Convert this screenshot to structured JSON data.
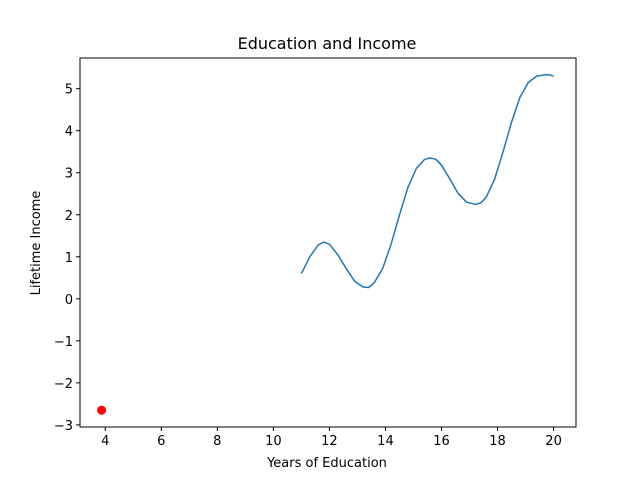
{
  "chart_data": {
    "type": "line",
    "title": "Education and Income",
    "xlabel": "Years of Education",
    "ylabel": "Lifetime Income",
    "xlim": [
      3.1,
      20.8
    ],
    "ylim": [
      -3.05,
      5.73
    ],
    "xticks": [
      4,
      6,
      8,
      10,
      12,
      14,
      16,
      18,
      20
    ],
    "yticks": [
      -3,
      -2,
      -1,
      0,
      1,
      2,
      3,
      4,
      5
    ],
    "xtick_labels": [
      "4",
      "6",
      "8",
      "10",
      "12",
      "14",
      "16",
      "18",
      "20"
    ],
    "ytick_labels": [
      "−3",
      "−2",
      "−1",
      "0",
      "1",
      "2",
      "3",
      "4",
      "5"
    ],
    "grid": false,
    "series": [
      {
        "type": "line",
        "color": "#1f77b4",
        "x": [
          11.0,
          11.3,
          11.6,
          11.8,
          12.0,
          12.3,
          12.6,
          12.9,
          13.2,
          13.4,
          13.6,
          13.9,
          14.2,
          14.5,
          14.8,
          15.1,
          15.4,
          15.6,
          15.8,
          16.0,
          16.3,
          16.6,
          16.9,
          17.2,
          17.4,
          17.6,
          17.9,
          18.2,
          18.5,
          18.8,
          19.1,
          19.4,
          19.7,
          19.85,
          20.0
        ],
        "y": [
          0.6,
          1.0,
          1.28,
          1.35,
          1.3,
          1.05,
          0.72,
          0.42,
          0.28,
          0.27,
          0.38,
          0.72,
          1.3,
          2.0,
          2.65,
          3.1,
          3.32,
          3.35,
          3.32,
          3.18,
          2.85,
          2.5,
          2.3,
          2.25,
          2.28,
          2.42,
          2.85,
          3.5,
          4.2,
          4.8,
          5.15,
          5.3,
          5.33,
          5.33,
          5.3
        ]
      },
      {
        "type": "scatter",
        "color": "#ff0000",
        "x": [
          3.87
        ],
        "y": [
          -2.65
        ]
      }
    ]
  }
}
